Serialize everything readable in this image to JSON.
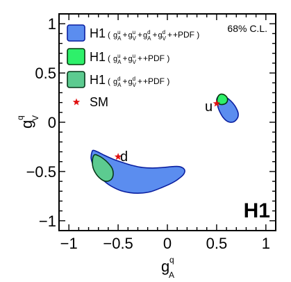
{
  "chart_data": {
    "type": "scatter",
    "title": "",
    "xlabel": "g",
    "xlabel_sup": "q",
    "xlabel_sub": "A",
    "ylabel": "g",
    "ylabel_sup": "q",
    "ylabel_sub": "V",
    "xlim": [
      -1.1,
      1.1
    ],
    "ylim": [
      -1.1,
      1.1
    ],
    "xticks": [
      -1,
      -0.5,
      0,
      0.5,
      1
    ],
    "xtick_labels": [
      "−1",
      "−0.5",
      "0",
      "0.5",
      "1"
    ],
    "yticks": [
      -1,
      -0.5,
      0,
      0.5,
      1
    ],
    "ytick_labels": [
      "−1",
      "−0.5",
      "0",
      "0.5",
      "1"
    ],
    "grid": false,
    "legend_position": "top-left",
    "cl_label": "68% C.L.",
    "h1_label": "H1",
    "series": [
      {
        "name": "H1 ( g_A^u + g_V^u + g_A^d + g_V^d + PDF )",
        "fit": "u",
        "color": "#5b8def",
        "edge": "#0a1fa0",
        "contour": [
          [
            0.505,
            0.195
          ],
          [
            0.5,
            0.23
          ],
          [
            0.52,
            0.265
          ],
          [
            0.56,
            0.265
          ],
          [
            0.6,
            0.25
          ],
          [
            0.64,
            0.22
          ],
          [
            0.68,
            0.175
          ],
          [
            0.71,
            0.12
          ],
          [
            0.72,
            0.08
          ],
          [
            0.71,
            0.04
          ],
          [
            0.675,
            0.005
          ],
          [
            0.635,
            0.0
          ],
          [
            0.6,
            0.015
          ],
          [
            0.565,
            0.05
          ],
          [
            0.535,
            0.1
          ],
          [
            0.515,
            0.15
          ]
        ]
      },
      {
        "name": "H1 ( g_A^u + g_V^u + g_A^d + g_V^d + PDF )",
        "fit": "d",
        "color": "#5b8def",
        "edge": "#0a1fa0",
        "contour": [
          [
            -0.765,
            -0.3
          ],
          [
            -0.75,
            -0.285
          ],
          [
            -0.71,
            -0.3
          ],
          [
            -0.64,
            -0.335
          ],
          [
            -0.55,
            -0.375
          ],
          [
            -0.45,
            -0.41
          ],
          [
            -0.35,
            -0.44
          ],
          [
            -0.25,
            -0.46
          ],
          [
            -0.15,
            -0.465
          ],
          [
            -0.05,
            -0.46
          ],
          [
            0.05,
            -0.45
          ],
          [
            0.12,
            -0.45
          ],
          [
            0.17,
            -0.475
          ],
          [
            0.17,
            -0.52
          ],
          [
            0.12,
            -0.57
          ],
          [
            0.05,
            -0.615
          ],
          [
            -0.05,
            -0.66
          ],
          [
            -0.17,
            -0.705
          ],
          [
            -0.28,
            -0.72
          ],
          [
            -0.38,
            -0.715
          ],
          [
            -0.47,
            -0.695
          ],
          [
            -0.55,
            -0.66
          ],
          [
            -0.62,
            -0.615
          ],
          [
            -0.68,
            -0.56
          ],
          [
            -0.73,
            -0.49
          ],
          [
            -0.76,
            -0.42
          ],
          [
            -0.775,
            -0.36
          ]
        ]
      },
      {
        "name": "H1 ( g_A^u + g_V^u + PDF )",
        "fit": "u",
        "color": "#2ef06a",
        "edge": "#063a0e",
        "contour": [
          [
            0.505,
            0.21
          ],
          [
            0.51,
            0.25
          ],
          [
            0.53,
            0.28
          ],
          [
            0.56,
            0.285
          ],
          [
            0.59,
            0.27
          ],
          [
            0.61,
            0.24
          ],
          [
            0.605,
            0.205
          ],
          [
            0.58,
            0.185
          ],
          [
            0.545,
            0.18
          ],
          [
            0.52,
            0.19
          ]
        ]
      },
      {
        "name": "H1 ( g_A^d + g_V^d + PDF )",
        "fit": "d",
        "color": "#5ccb90",
        "edge": "#07381a",
        "contour": [
          [
            -0.76,
            -0.38
          ],
          [
            -0.74,
            -0.33
          ],
          [
            -0.7,
            -0.34
          ],
          [
            -0.65,
            -0.37
          ],
          [
            -0.6,
            -0.415
          ],
          [
            -0.56,
            -0.47
          ],
          [
            -0.55,
            -0.53
          ],
          [
            -0.57,
            -0.58
          ],
          [
            -0.62,
            -0.6
          ],
          [
            -0.67,
            -0.58
          ],
          [
            -0.72,
            -0.53
          ],
          [
            -0.755,
            -0.46
          ]
        ]
      },
      {
        "name": "SM",
        "type": "marker",
        "marker": "star",
        "color": "#e01010",
        "points": [
          [
            0.5,
            0.19
          ],
          [
            -0.5,
            -0.35
          ]
        ]
      }
    ],
    "legend": [
      {
        "main": "H1",
        "args": [
          [
            "u",
            "A"
          ],
          [
            "u",
            "V"
          ],
          [
            "d",
            "A"
          ],
          [
            "d",
            "V"
          ]
        ],
        "tail": "+PDF )"
      },
      {
        "main": "H1",
        "args": [
          [
            "u",
            "A"
          ],
          [
            "u",
            "V"
          ]
        ],
        "tail": "+PDF )"
      },
      {
        "main": "H1",
        "args": [
          [
            "d",
            "A"
          ],
          [
            "d",
            "V"
          ]
        ],
        "tail": "+PDF )"
      },
      {
        "main": "SM"
      }
    ],
    "annotations": [
      {
        "text": "u",
        "x": 0.42,
        "y": 0.17
      },
      {
        "text": "d",
        "x": -0.44,
        "y": -0.34
      }
    ]
  }
}
